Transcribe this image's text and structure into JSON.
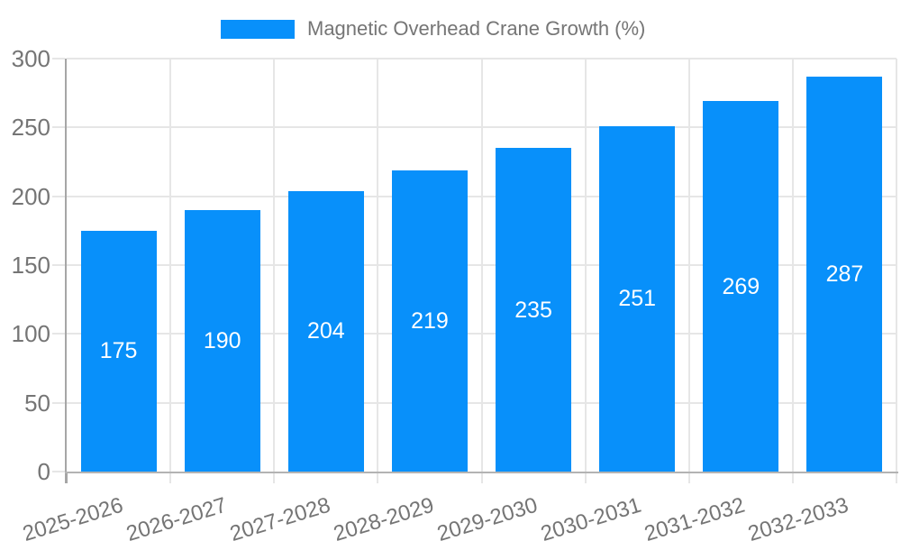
{
  "chart_data": {
    "type": "bar",
    "title": "Magnetic Overhead Crane Growth (%)",
    "categories": [
      "2025-2026",
      "2026-2027",
      "2027-2028",
      "2028-2029",
      "2029-2030",
      "2030-2031",
      "2031-2032",
      "2032-2033"
    ],
    "values": [
      175,
      190,
      204,
      219,
      235,
      251,
      269,
      287
    ],
    "xlabel": "",
    "ylabel": "",
    "ylim": [
      0,
      300
    ],
    "yticks": [
      0,
      50,
      100,
      150,
      200,
      250,
      300
    ],
    "grid": true,
    "legend_position": "top-center",
    "value_labels": "inside-center",
    "colors": {
      "bar": "#0890fa",
      "value_label_text": "#ffffff",
      "axis_text": "#757575",
      "gridline": "#e6e6e6",
      "y_spine": "#a6a6a6",
      "x_axis_line": "#b3b3b3",
      "background": "#ffffff"
    }
  }
}
